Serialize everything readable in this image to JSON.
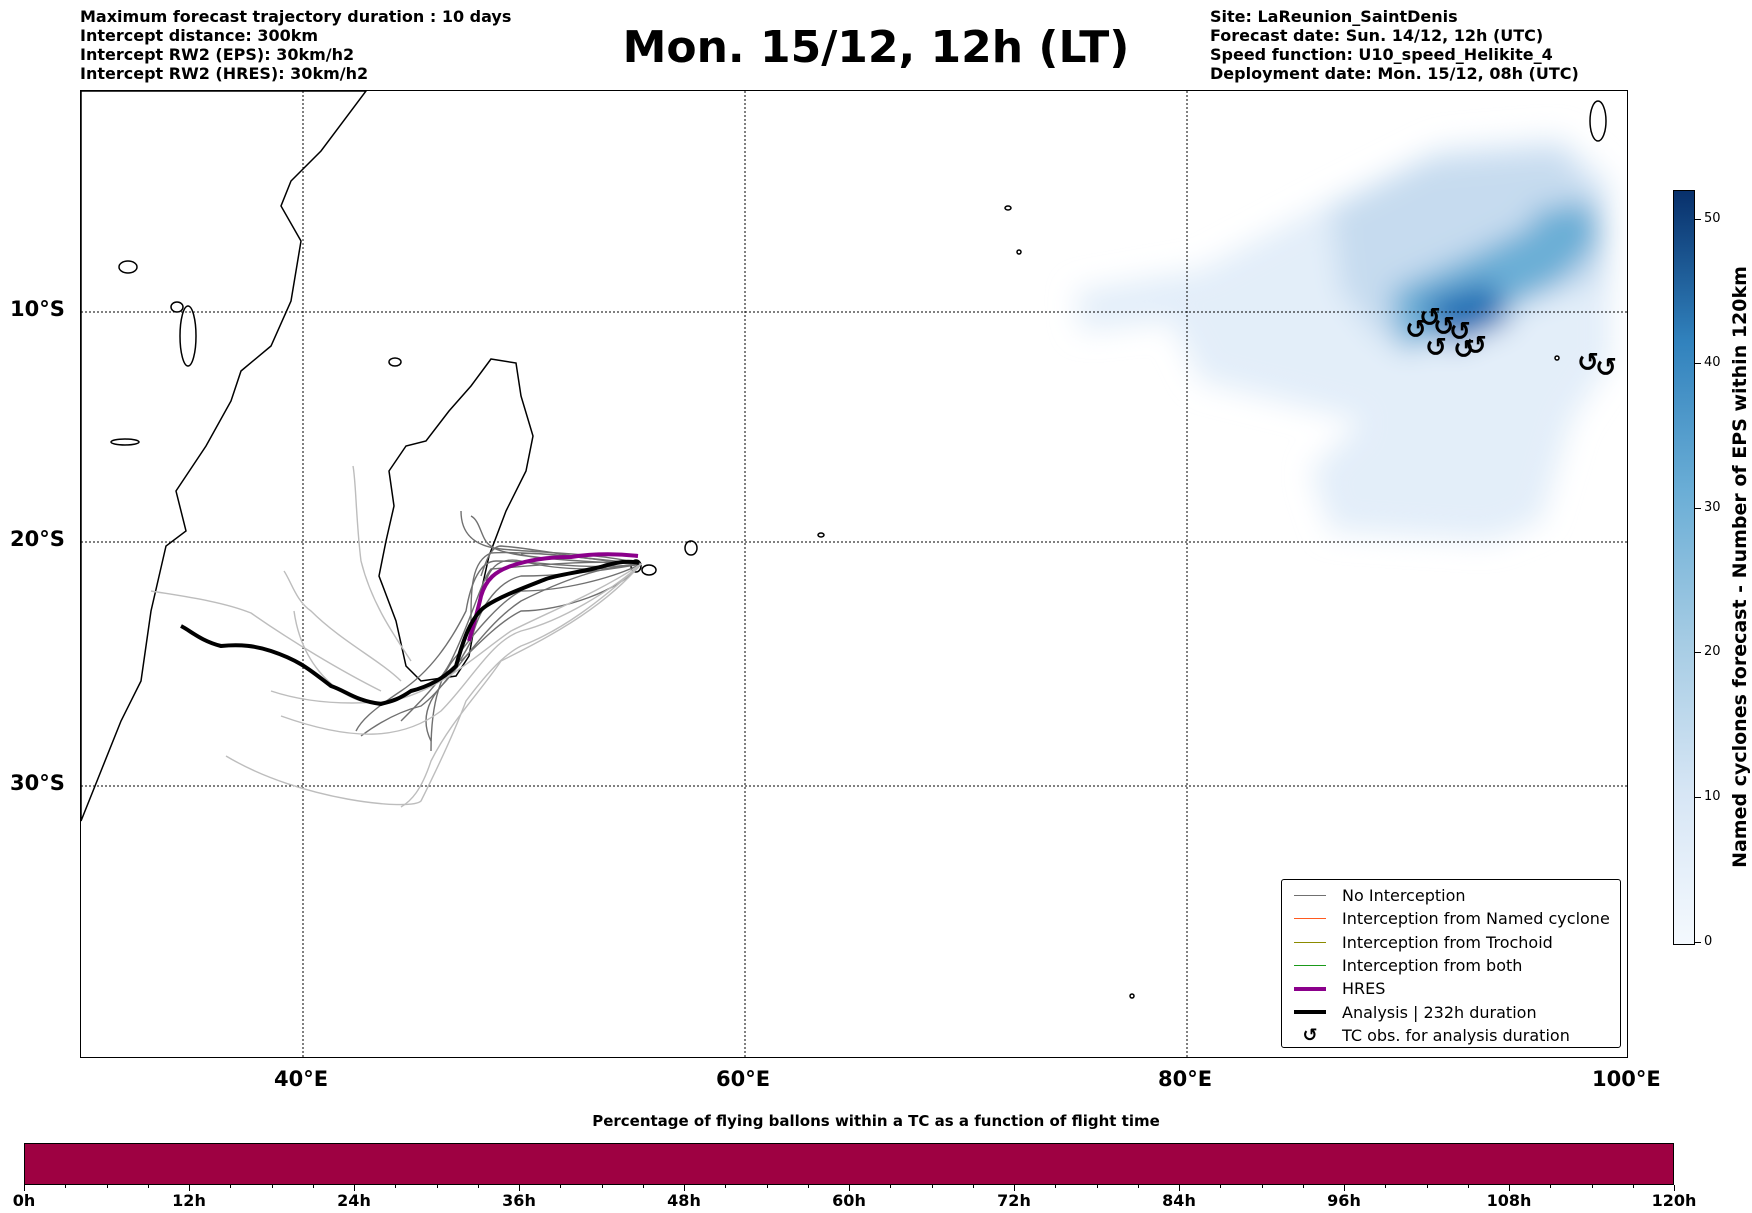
{
  "header": {
    "left": [
      "Maximum forecast trajectory duration : 10 days",
      "Intercept distance: 300km",
      "Intercept RW2 (EPS):  30km/h2",
      "Intercept RW2 (HRES): 30km/h2"
    ],
    "title": "Mon. 15/12, 12h (LT)",
    "right": [
      "Site: LaReunion_SaintDenis",
      "Forecast date: Sun. 14/12, 12h (UTC)",
      "Speed function: U10_speed_Helikite_4",
      "Deployment date: Mon. 15/12, 08h (UTC)"
    ]
  },
  "map": {
    "lat_labels": [
      "10°S",
      "20°S",
      "30°S"
    ],
    "lon_labels": [
      "40°E",
      "60°E",
      "80°E",
      "100°E"
    ],
    "tc_symbol": "↺"
  },
  "legend": {
    "items": [
      {
        "label": "No Interception",
        "color": "#707070",
        "style": "thin"
      },
      {
        "label": "Interception from Named cyclone",
        "color": "#ff5a1f",
        "style": "thin"
      },
      {
        "label": "Interception from Trochoid",
        "color": "#8b8b00",
        "style": "thin"
      },
      {
        "label": "Interception from both",
        "color": "#1a9a1a",
        "style": "thin"
      },
      {
        "label": "HRES",
        "color": "#8b008b",
        "style": "thick"
      },
      {
        "label": "Analysis | 232h duration",
        "color": "#000000",
        "style": "thick"
      },
      {
        "label": "TC obs. for analysis duration",
        "color": "#000000",
        "style": "symbol"
      }
    ]
  },
  "colorbar": {
    "title": "Named cyclones forecast - Number of EPS within 120km",
    "ticks": [
      "0",
      "10",
      "20",
      "30",
      "40",
      "50"
    ]
  },
  "bottom_bar": {
    "title": "Percentage of flying ballons within a TC as a function of flight time",
    "ticks": [
      "0h",
      "12h",
      "24h",
      "36h",
      "48h",
      "60h",
      "72h",
      "84h",
      "96h",
      "108h",
      "120h"
    ],
    "color": "#9e0142"
  }
}
